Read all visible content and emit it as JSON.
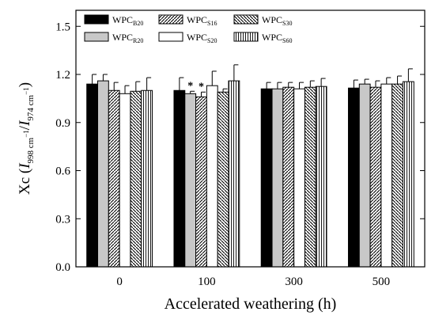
{
  "chart_data": {
    "type": "bar",
    "categories": [
      "0",
      "100",
      "300",
      "500"
    ],
    "xlabel": "Accelerated weathering (h)",
    "ylabel": {
      "prefix": "Xc (",
      "num_italic": "I",
      "num_sub_number": "998",
      "num_sub_unit": " cm",
      "num_sub_exp": "−1",
      "slash": "/",
      "den_italic": "I",
      "den_sub_number": "974",
      "den_sub_unit": " cm",
      "den_sub_exp": "−1",
      "suffix": ")"
    },
    "ylim": [
      0.0,
      1.6
    ],
    "yticks": [
      "0.0",
      "0.3",
      "0.6",
      "0.9",
      "1.2",
      "1.5"
    ],
    "ytick_values": [
      0.0,
      0.3,
      0.6,
      0.9,
      1.2,
      1.5
    ],
    "legend_position": "top-left",
    "series": [
      {
        "name": "WPCB20",
        "label_main": "WPC",
        "label_sub": "B20",
        "pattern": "solid-black",
        "values": [
          1.14,
          1.1,
          1.11,
          1.115
        ],
        "errors": [
          0.06,
          0.08,
          0.04,
          0.05
        ]
      },
      {
        "name": "WPCR20",
        "label_main": "WPC",
        "label_sub": "R20",
        "pattern": "light-gray",
        "values": [
          1.16,
          1.08,
          1.11,
          1.14
        ],
        "errors": [
          0.04,
          0.015,
          0.04,
          0.03
        ]
      },
      {
        "name": "WPCS16",
        "label_main": "WPC",
        "label_sub": "S16",
        "pattern": "diagonal-dense",
        "values": [
          1.1,
          1.06,
          1.12,
          1.12
        ],
        "errors": [
          0.05,
          0.03,
          0.03,
          0.04
        ]
      },
      {
        "name": "WPCS20",
        "label_main": "WPC",
        "label_sub": "S20",
        "pattern": "white",
        "values": [
          1.08,
          1.13,
          1.11,
          1.14
        ],
        "errors": [
          0.05,
          0.09,
          0.04,
          0.04
        ]
      },
      {
        "name": "WPCS30",
        "label_main": "WPC",
        "label_sub": "S30",
        "pattern": "diagonal-crossed",
        "values": [
          1.095,
          1.09,
          1.12,
          1.14
        ],
        "errors": [
          0.06,
          0.02,
          0.04,
          0.05
        ]
      },
      {
        "name": "WPCS60",
        "label_main": "WPC",
        "label_sub": "S60",
        "pattern": "vertical-lines",
        "values": [
          1.1,
          1.16,
          1.125,
          1.155
        ],
        "errors": [
          0.08,
          0.1,
          0.05,
          0.08
        ]
      }
    ],
    "annotations": [
      {
        "text": "*",
        "category": "100",
        "series": "WPCR20"
      },
      {
        "text": "*",
        "category": "100",
        "series": "WPCS16"
      }
    ]
  }
}
